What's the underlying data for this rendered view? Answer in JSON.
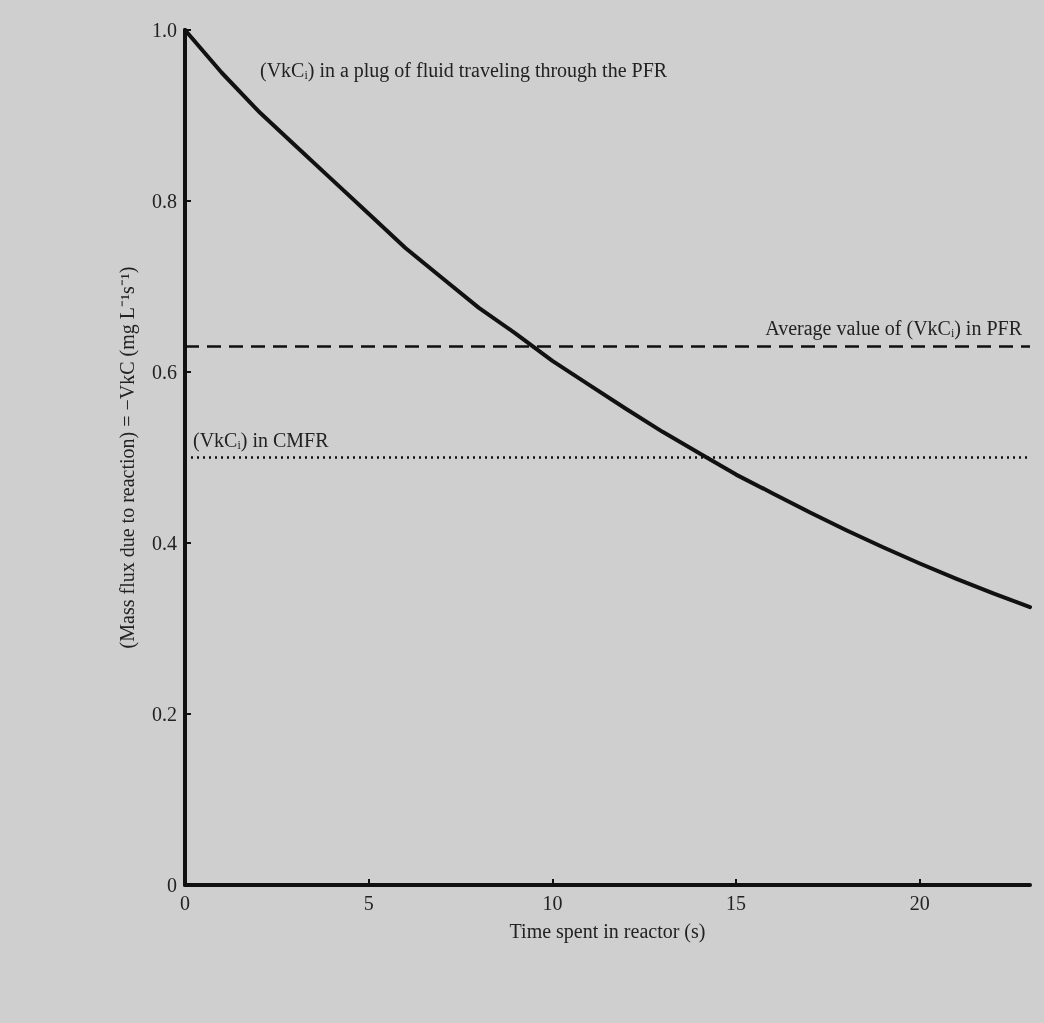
{
  "chart_data": {
    "type": "line",
    "xlabel": "Time spent in reactor (s)",
    "ylabel": "(Mass flux due to reaction) = −VkC (mg L⁻¹s⁻¹)",
    "x": [
      0,
      1,
      2,
      3,
      4,
      5,
      6,
      7,
      8,
      9,
      10,
      11,
      12,
      13,
      14,
      15,
      16,
      17,
      18,
      19,
      20,
      21,
      22,
      23
    ],
    "series": [
      {
        "name": "(VkCᵢ) in a plug of fluid traveling through the PFR",
        "color": "#111111",
        "line_style": "solid",
        "values": [
          1.0,
          0.95,
          0.905,
          0.865,
          0.825,
          0.785,
          0.745,
          0.71,
          0.675,
          0.645,
          0.613,
          0.585,
          0.557,
          0.53,
          0.505,
          0.48,
          0.458,
          0.436,
          0.415,
          0.395,
          0.376,
          0.358,
          0.341,
          0.325
        ]
      }
    ],
    "xlim": [
      0,
      23
    ],
    "xticks": [
      0,
      5,
      10,
      15,
      20
    ],
    "ylim": [
      0,
      1
    ],
    "yticks": [
      0,
      0.2,
      0.4,
      0.6,
      0.8,
      {
        "value": 1,
        "label": "1.0"
      }
    ],
    "ref_lines": [
      {
        "axis": "y",
        "value": 0.63,
        "label": "Average value of (VkCᵢ) in PFR",
        "line_style": "dashed",
        "color": "#111111"
      },
      {
        "axis": "y",
        "value": 0.5,
        "label": "(VkCᵢ) in CMFR",
        "line_style": "dotted",
        "color": "#111111"
      }
    ],
    "marker": "none",
    "grid": false,
    "legend": false
  }
}
